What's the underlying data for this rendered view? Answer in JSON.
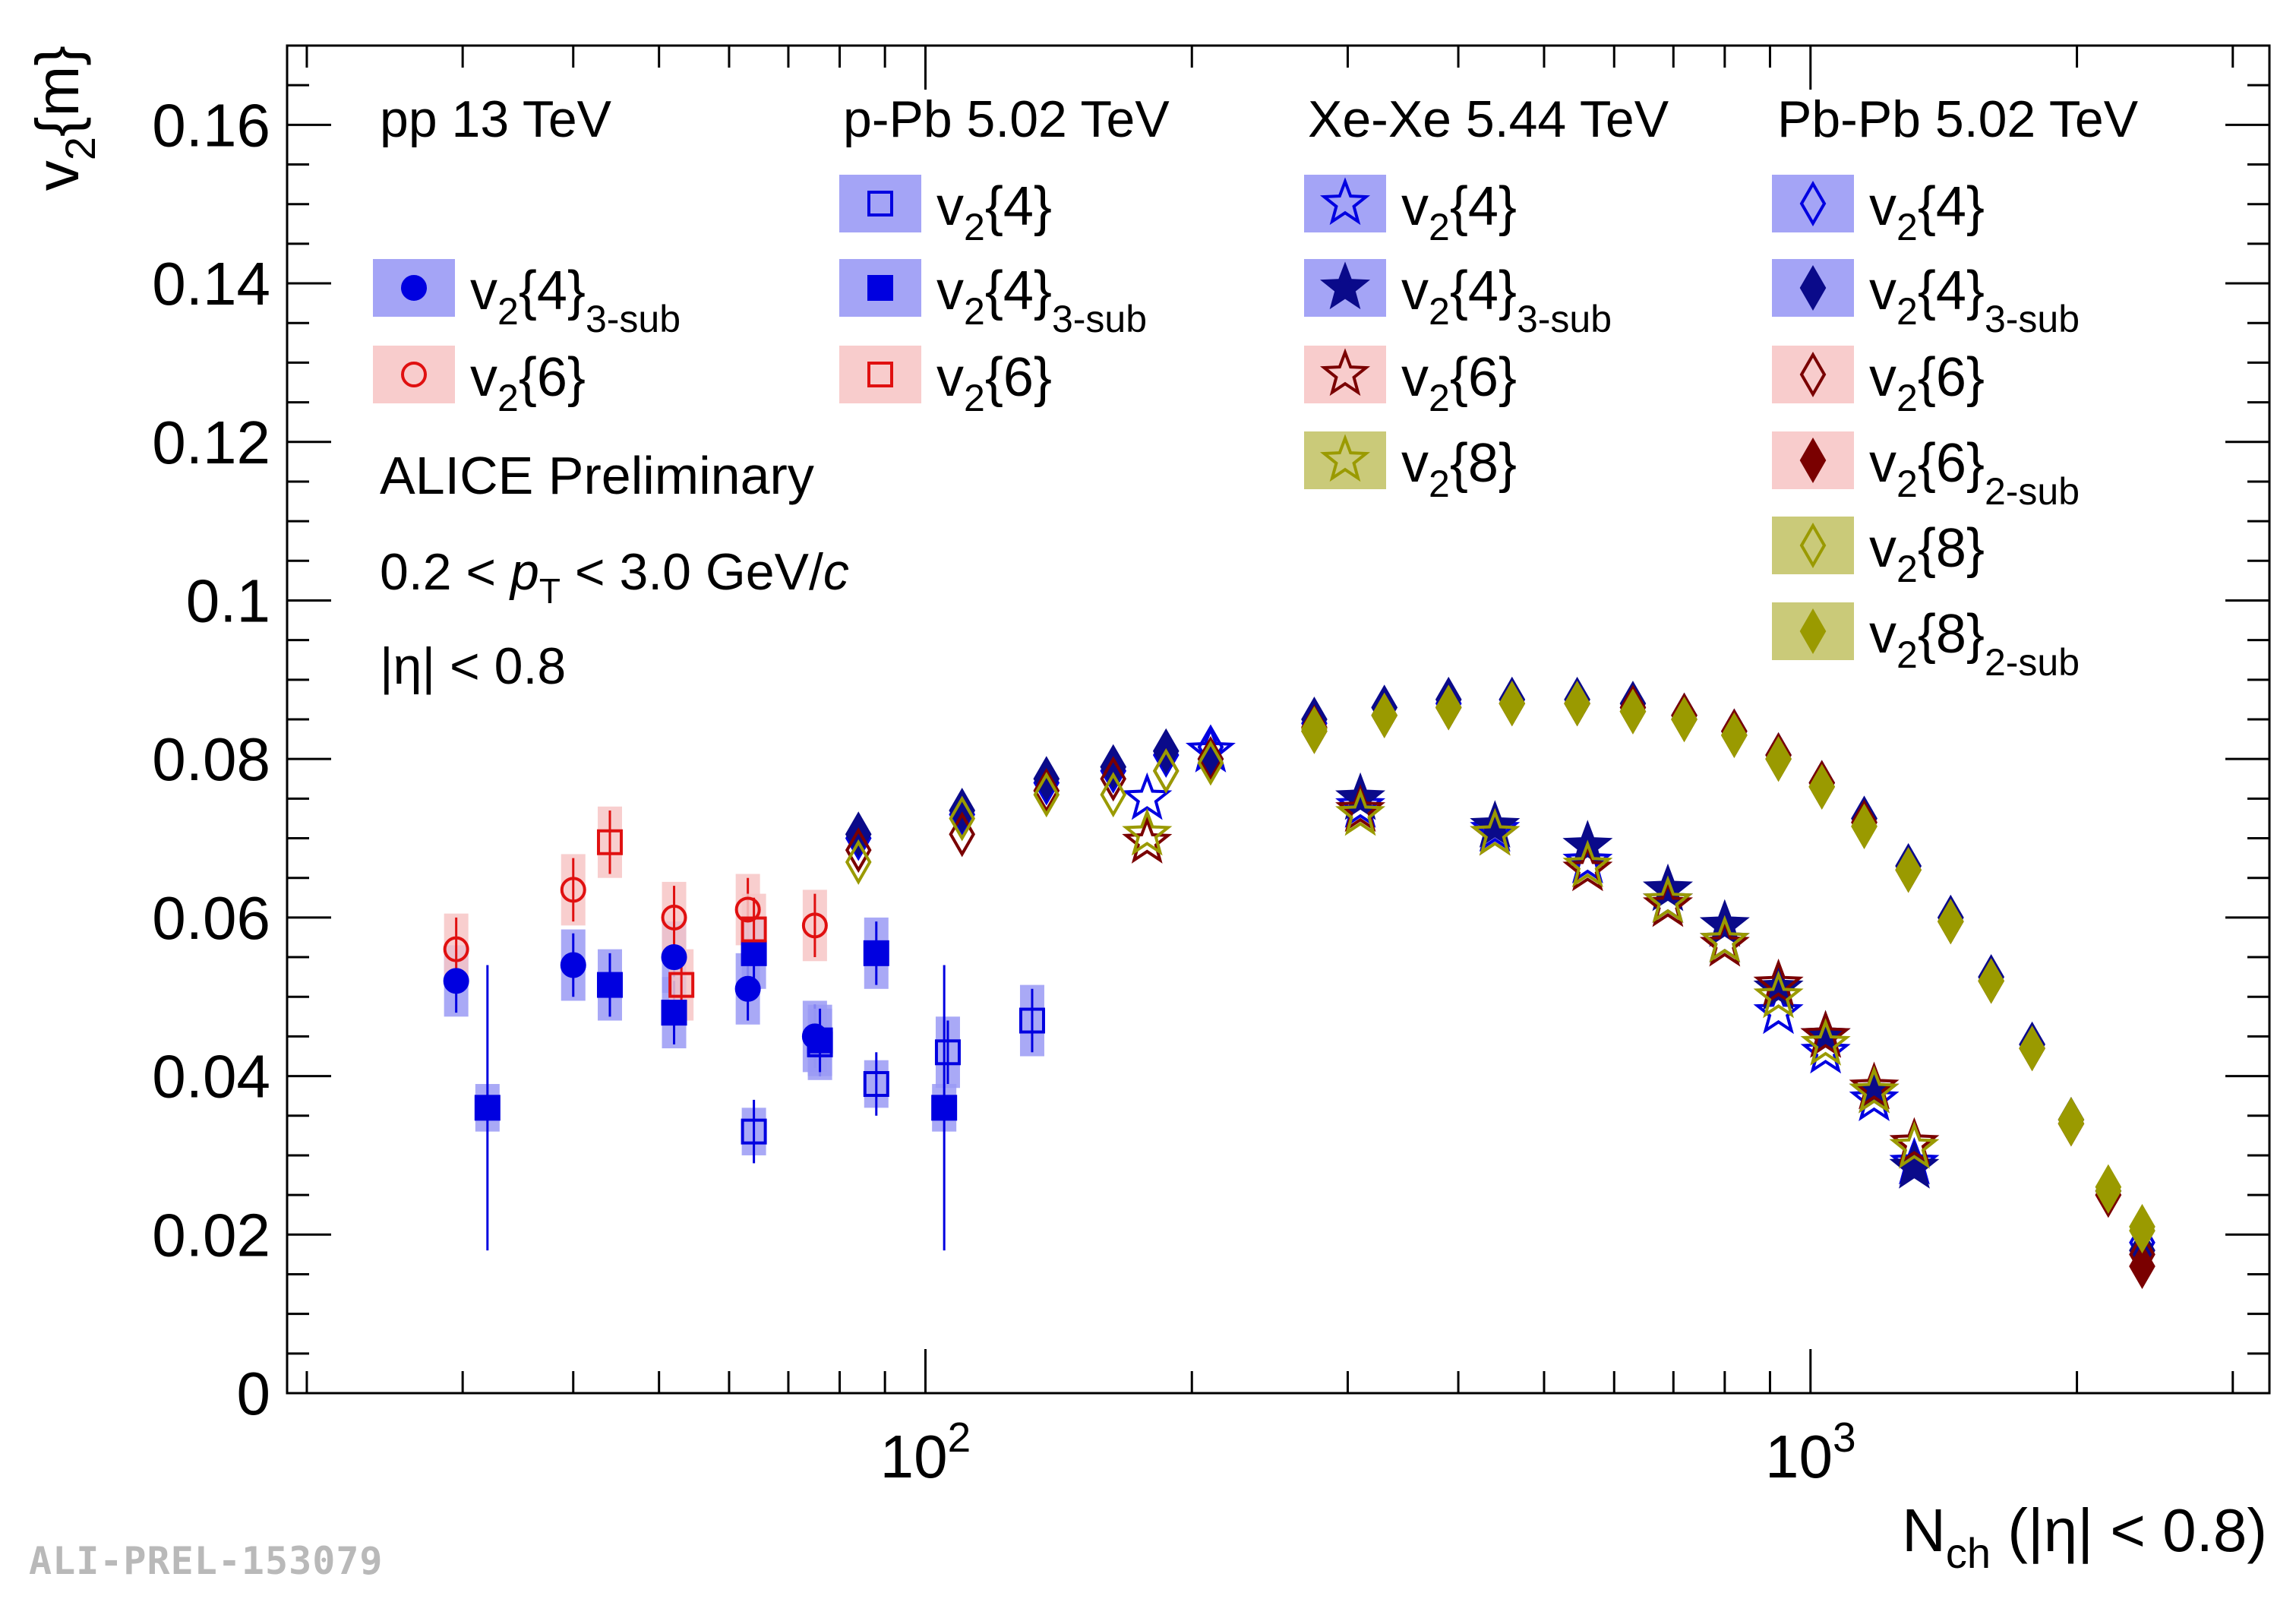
{
  "chart_data": {
    "type": "scatter",
    "title": "",
    "ylabel": "v₂{m}",
    "ylabel_base": "v",
    "ylabel_sub": "2",
    "ylabel_tail": "{m}",
    "xlabel_base": "N",
    "xlabel_sub": "ch",
    "xlabel_tail": " (|η| < 0.8)",
    "x_scale": "log",
    "xlim": [
      19,
      3300
    ],
    "ylim": [
      0,
      0.17
    ],
    "yticks": [
      0,
      0.02,
      0.04,
      0.06,
      0.08,
      0.1,
      0.12,
      0.14,
      0.16
    ],
    "ytick_labels": [
      "0",
      "0.02",
      "0.04",
      "0.06",
      "0.08",
      "0.1",
      "0.12",
      "0.14",
      "0.16"
    ],
    "xtick_labels": [
      {
        "base": "10",
        "exp": "2",
        "value": 100
      },
      {
        "base": "10",
        "exp": "3",
        "value": 1000
      }
    ],
    "annotations": [
      {
        "role": "header-pp",
        "text": "pp 13 TeV"
      },
      {
        "role": "header-ppb",
        "text": "p-Pb 5.02 TeV"
      },
      {
        "role": "header-xexe",
        "text": "Xe-Xe 5.44 TeV"
      },
      {
        "role": "header-pbpb",
        "text": "Pb-Pb 5.02 TeV"
      },
      {
        "role": "experiment",
        "text": "ALICE Preliminary"
      },
      {
        "role": "pt-cut",
        "text": "0.2 < pT < 3.0 GeV/c"
      },
      {
        "role": "eta-cut",
        "text": "|η| < 0.8"
      }
    ],
    "watermark": "ALI-PREL-153079",
    "colors": {
      "blue": "#0000e0",
      "navy": "#0a0a8a",
      "red": "#e01010",
      "darkred": "#7a0000",
      "olive": "#9a9a00",
      "band_blue": "#9a9af5",
      "band_red": "#f7c6c6",
      "band_olive": "#c4c46a"
    },
    "series": [
      {
        "name": "pp v2{4}3-sub",
        "label": "v2{4}",
        "label_sub": "3-sub",
        "system": "pp 13 TeV",
        "marker": "circle",
        "filled": true,
        "color": "#0000e0",
        "points": [
          [
            29.5,
            0.052
          ],
          [
            40,
            0.054
          ],
          [
            52,
            0.055
          ],
          [
            63,
            0.051
          ],
          [
            75,
            0.045
          ]
        ]
      },
      {
        "name": "pp v2{6}",
        "label": "v2{6}",
        "label_sub": "",
        "system": "pp 13 TeV",
        "marker": "circle",
        "filled": false,
        "color": "#e01010",
        "points": [
          [
            29.5,
            0.056
          ],
          [
            40,
            0.0635
          ],
          [
            52,
            0.06
          ],
          [
            63,
            0.061
          ],
          [
            75,
            0.059
          ]
        ]
      },
      {
        "name": "p-Pb v2{4}",
        "label": "v2{4}",
        "label_sub": "",
        "system": "p-Pb 5.02 TeV",
        "marker": "square",
        "filled": false,
        "color": "#0000e0",
        "points": [
          [
            64,
            0.033
          ],
          [
            76,
            0.044
          ],
          [
            88,
            0.039
          ],
          [
            106,
            0.043
          ],
          [
            132,
            0.047
          ]
        ]
      },
      {
        "name": "p-Pb v2{4}3-sub",
        "label": "v2{4}",
        "label_sub": "3-sub",
        "system": "p-Pb 5.02 TeV",
        "marker": "square",
        "filled": true,
        "color": "#0000e0",
        "points": [
          [
            32,
            0.036
          ],
          [
            44,
            0.0515
          ],
          [
            52,
            0.048
          ],
          [
            64,
            0.0555
          ],
          [
            76,
            0.0445
          ],
          [
            88,
            0.0555
          ],
          [
            105,
            0.036
          ]
        ]
      },
      {
        "name": "p-Pb v2{6}",
        "label": "v2{6}",
        "label_sub": "",
        "system": "p-Pb 5.02 TeV",
        "marker": "square",
        "filled": false,
        "color": "#e01010",
        "points": [
          [
            44,
            0.0695
          ],
          [
            53,
            0.0515
          ],
          [
            64,
            0.0585
          ]
        ]
      },
      {
        "name": "Xe-Xe v2{4}",
        "label": "v2{4}",
        "label_sub": "",
        "system": "Xe-Xe 5.44 TeV",
        "marker": "star",
        "filled": false,
        "color": "#0000e0",
        "points": [
          [
            178,
            0.075
          ],
          [
            210,
            0.081
          ],
          [
            310,
            0.074
          ],
          [
            440,
            0.071
          ],
          [
            560,
            0.067
          ],
          [
            690,
            0.062
          ],
          [
            800,
            0.057
          ],
          [
            920,
            0.048
          ],
          [
            1040,
            0.043
          ],
          [
            1180,
            0.037
          ],
          [
            1310,
            0.029
          ]
        ]
      },
      {
        "name": "Xe-Xe v2{4}3-sub",
        "label": "v2{4}",
        "label_sub": "3-sub",
        "system": "Xe-Xe 5.44 TeV",
        "marker": "star",
        "filled": true,
        "color": "#0a0a8a",
        "points": [
          [
            310,
            0.075
          ],
          [
            440,
            0.0715
          ],
          [
            560,
            0.069
          ],
          [
            690,
            0.0635
          ],
          [
            800,
            0.059
          ],
          [
            920,
            0.051
          ],
          [
            1040,
            0.045
          ],
          [
            1180,
            0.038
          ],
          [
            1310,
            0.0285
          ]
        ]
      },
      {
        "name": "Xe-Xe v2{6}",
        "label": "v2{6}",
        "label_sub": "",
        "system": "Xe-Xe 5.44 TeV",
        "marker": "star",
        "filled": false,
        "color": "#7a0000",
        "points": [
          [
            178,
            0.0695
          ],
          [
            310,
            0.0735
          ],
          [
            440,
            0.0705
          ],
          [
            560,
            0.066
          ],
          [
            690,
            0.0615
          ],
          [
            800,
            0.0565
          ],
          [
            920,
            0.0515
          ],
          [
            1040,
            0.045
          ],
          [
            1180,
            0.0385
          ],
          [
            1310,
            0.0315
          ]
        ]
      },
      {
        "name": "Xe-Xe v2{8}",
        "label": "v2{8}",
        "label_sub": "",
        "system": "Xe-Xe 5.44 TeV",
        "marker": "star",
        "filled": false,
        "color": "#9a9a00",
        "points": [
          [
            178,
            0.0705
          ],
          [
            310,
            0.073
          ],
          [
            440,
            0.0705
          ],
          [
            560,
            0.0665
          ],
          [
            690,
            0.062
          ],
          [
            800,
            0.057
          ],
          [
            920,
            0.05
          ],
          [
            1040,
            0.044
          ],
          [
            1180,
            0.038
          ],
          [
            1310,
            0.031
          ]
        ]
      },
      {
        "name": "Pb-Pb v2{4}",
        "label": "v2{4}",
        "label_sub": "",
        "system": "Pb-Pb 5.02 TeV",
        "marker": "diamond",
        "filled": false,
        "color": "#0000e0",
        "points": [
          [
            84,
            0.07
          ],
          [
            110,
            0.073
          ],
          [
            137,
            0.077
          ],
          [
            163,
            0.0785
          ],
          [
            187,
            0.0805
          ],
          [
            210,
            0.0815
          ],
          [
            275,
            0.0845
          ],
          [
            330,
            0.0865
          ],
          [
            390,
            0.087
          ],
          [
            460,
            0.0875
          ],
          [
            545,
            0.087
          ],
          [
            630,
            0.0865
          ],
          [
            720,
            0.0855
          ],
          [
            820,
            0.0835
          ],
          [
            920,
            0.0805
          ],
          [
            1030,
            0.077
          ],
          [
            1150,
            0.0725
          ],
          [
            1290,
            0.0665
          ],
          [
            1440,
            0.06
          ],
          [
            1600,
            0.0525
          ],
          [
            1780,
            0.044
          ],
          [
            1970,
            0.0345
          ],
          [
            2170,
            0.0255
          ],
          [
            2370,
            0.019
          ]
        ]
      },
      {
        "name": "Pb-Pb v2{4}3-sub",
        "label": "v2{4}",
        "label_sub": "3-sub",
        "system": "Pb-Pb 5.02 TeV",
        "marker": "diamond",
        "filled": true,
        "color": "#0a0a8a",
        "points": [
          [
            84,
            0.0705
          ],
          [
            110,
            0.0735
          ],
          [
            137,
            0.0775
          ],
          [
            163,
            0.079
          ],
          [
            187,
            0.081
          ],
          [
            210,
            0.08
          ],
          [
            275,
            0.085
          ],
          [
            330,
            0.0865
          ],
          [
            390,
            0.0875
          ],
          [
            460,
            0.0875
          ],
          [
            545,
            0.0875
          ],
          [
            630,
            0.087
          ],
          [
            720,
            0.0855
          ],
          [
            820,
            0.0835
          ],
          [
            920,
            0.0805
          ],
          [
            1030,
            0.077
          ],
          [
            1150,
            0.0725
          ],
          [
            1290,
            0.0665
          ],
          [
            1440,
            0.06
          ],
          [
            1600,
            0.0525
          ],
          [
            1780,
            0.044
          ],
          [
            1970,
            0.0345
          ],
          [
            2170,
            0.0255
          ],
          [
            2370,
            0.018
          ]
        ]
      },
      {
        "name": "Pb-Pb v2{6}",
        "label": "v2{6}",
        "label_sub": "",
        "system": "Pb-Pb 5.02 TeV",
        "marker": "diamond",
        "filled": false,
        "color": "#7a0000",
        "points": [
          [
            84,
            0.0685
          ],
          [
            110,
            0.0705
          ],
          [
            137,
            0.076
          ],
          [
            163,
            0.0775
          ],
          [
            187,
            0.0785
          ],
          [
            210,
            0.08
          ],
          [
            275,
            0.0835
          ],
          [
            330,
            0.0855
          ],
          [
            390,
            0.0865
          ],
          [
            460,
            0.087
          ],
          [
            545,
            0.087
          ],
          [
            630,
            0.086
          ],
          [
            720,
            0.085
          ],
          [
            820,
            0.083
          ],
          [
            920,
            0.08
          ],
          [
            1030,
            0.0765
          ],
          [
            1150,
            0.072
          ],
          [
            1290,
            0.066
          ],
          [
            1440,
            0.0595
          ],
          [
            1600,
            0.052
          ],
          [
            1780,
            0.0435
          ],
          [
            1970,
            0.034
          ],
          [
            2170,
            0.025
          ],
          [
            2370,
            0.0175
          ]
        ]
      },
      {
        "name": "Pb-Pb v2{6}2-sub",
        "label": "v2{6}",
        "label_sub": "2-sub",
        "system": "Pb-Pb 5.02 TeV",
        "marker": "diamond",
        "filled": true,
        "color": "#7a0000",
        "points": [
          [
            275,
            0.084
          ],
          [
            330,
            0.0855
          ],
          [
            390,
            0.0865
          ],
          [
            460,
            0.087
          ],
          [
            545,
            0.087
          ],
          [
            630,
            0.0865
          ],
          [
            720,
            0.0855
          ],
          [
            820,
            0.0835
          ],
          [
            920,
            0.0805
          ],
          [
            1030,
            0.077
          ],
          [
            1150,
            0.072
          ],
          [
            1290,
            0.066
          ],
          [
            1440,
            0.0595
          ],
          [
            1600,
            0.052
          ],
          [
            1780,
            0.0435
          ],
          [
            1970,
            0.034
          ],
          [
            2170,
            0.025
          ],
          [
            2370,
            0.016
          ]
        ]
      },
      {
        "name": "Pb-Pb v2{8}",
        "label": "v2{8}",
        "label_sub": "",
        "system": "Pb-Pb 5.02 TeV",
        "marker": "diamond",
        "filled": false,
        "color": "#9a9a00",
        "points": [
          [
            84,
            0.067
          ],
          [
            110,
            0.0725
          ],
          [
            137,
            0.0755
          ],
          [
            163,
            0.0755
          ],
          [
            187,
            0.0785
          ],
          [
            210,
            0.0795
          ],
          [
            275,
            0.0835
          ],
          [
            330,
            0.0855
          ],
          [
            390,
            0.0865
          ],
          [
            460,
            0.087
          ],
          [
            545,
            0.087
          ],
          [
            630,
            0.086
          ],
          [
            720,
            0.085
          ],
          [
            820,
            0.083
          ],
          [
            920,
            0.08
          ],
          [
            1030,
            0.0765
          ],
          [
            1150,
            0.0715
          ],
          [
            1290,
            0.066
          ],
          [
            1440,
            0.0595
          ],
          [
            1600,
            0.052
          ],
          [
            1780,
            0.0435
          ],
          [
            1970,
            0.034
          ],
          [
            2170,
            0.0255
          ],
          [
            2370,
            0.0205
          ]
        ]
      },
      {
        "name": "Pb-Pb v2{8}2-sub",
        "label": "v2{8}",
        "label_sub": "2-sub",
        "system": "Pb-Pb 5.02 TeV",
        "marker": "diamond",
        "filled": true,
        "color": "#9a9a00",
        "points": [
          [
            275,
            0.0838
          ],
          [
            330,
            0.0855
          ],
          [
            390,
            0.0865
          ],
          [
            460,
            0.087
          ],
          [
            545,
            0.087
          ],
          [
            630,
            0.086
          ],
          [
            720,
            0.085
          ],
          [
            820,
            0.083
          ],
          [
            920,
            0.08
          ],
          [
            1030,
            0.0765
          ],
          [
            1150,
            0.0715
          ],
          [
            1290,
            0.066
          ],
          [
            1440,
            0.0595
          ],
          [
            1600,
            0.052
          ],
          [
            1780,
            0.0435
          ],
          [
            1970,
            0.0345
          ],
          [
            2170,
            0.026
          ],
          [
            2370,
            0.021
          ]
        ]
      }
    ]
  }
}
